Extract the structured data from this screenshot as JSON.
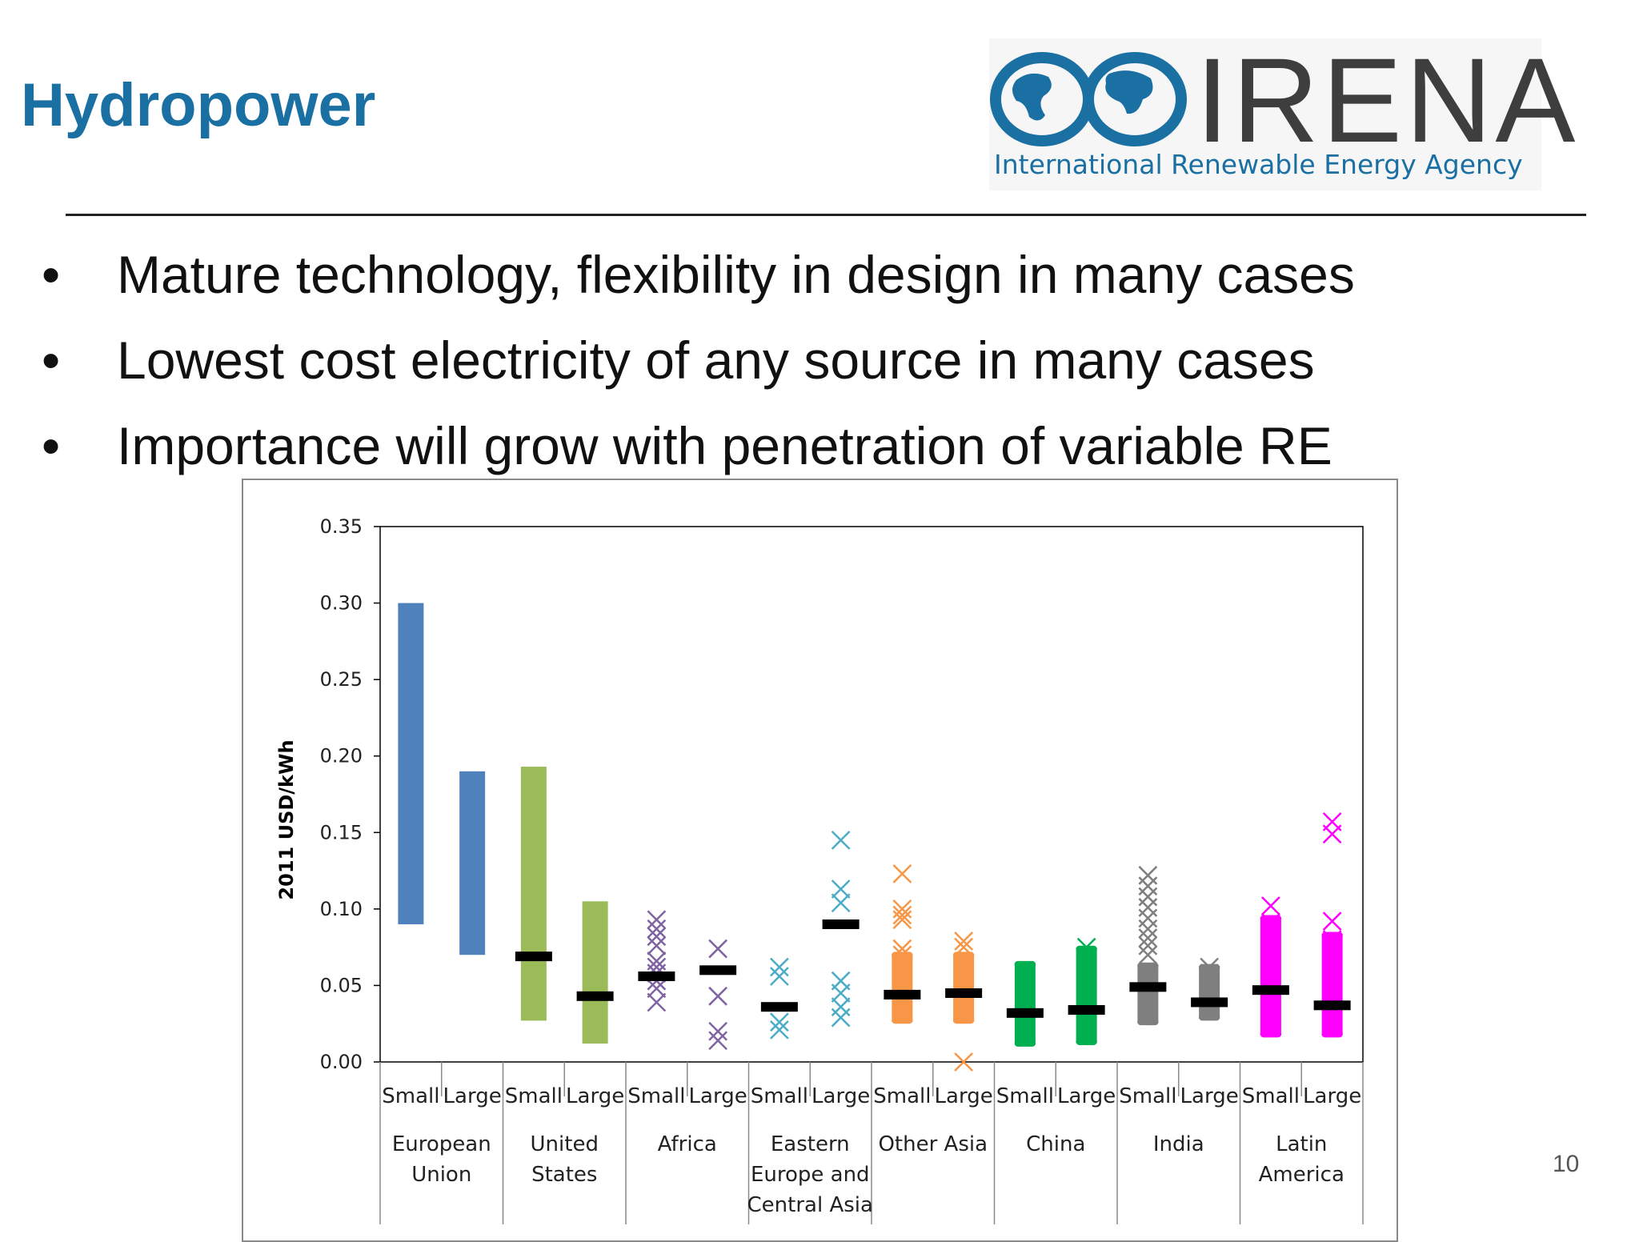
{
  "slide": {
    "title": "Hydropower",
    "bullets": [
      "Mature technology, flexibility in design in many cases",
      "Lowest cost electricity of any source in many cases",
      "Importance will grow with penetration of variable RE"
    ],
    "bullet_glyph": "•",
    "page_number": "10"
  },
  "logo": {
    "name": "IRENA",
    "tagline": "International Renewable Energy Agency",
    "globe_color": "#1a6fa3",
    "text_color": "#3e3e3e"
  },
  "chart_data": {
    "type": "bar",
    "ylabel": "2011 USD/kWh",
    "ylim": [
      0,
      0.35
    ],
    "yticks": [
      "0.00",
      "0.05",
      "0.10",
      "0.15",
      "0.20",
      "0.25",
      "0.30",
      "0.35"
    ],
    "ytick_values": [
      0,
      0.05,
      0.1,
      0.15,
      0.2,
      0.25,
      0.3,
      0.35
    ],
    "regions": [
      {
        "label_lines": [
          "European",
          "Union"
        ],
        "color": "#4f81bd"
      },
      {
        "label_lines": [
          "United",
          "States"
        ],
        "color": "#9bbb59"
      },
      {
        "label_lines": [
          "Africa"
        ],
        "color": "#8064a2"
      },
      {
        "label_lines": [
          "Eastern",
          "Europe and",
          "Central Asia"
        ],
        "color": "#4bacc6"
      },
      {
        "label_lines": [
          "Other Asia"
        ],
        "color": "#f79646"
      },
      {
        "label_lines": [
          "China"
        ],
        "color": "#00b050"
      },
      {
        "label_lines": [
          "India"
        ],
        "color": "#7f7f7f"
      },
      {
        "label_lines": [
          "Latin",
          "America"
        ],
        "color": "#ff00ff"
      }
    ],
    "size_labels": [
      "Small",
      "Large"
    ],
    "mean_marker_color": "#000000",
    "columns": [
      {
        "region": 0,
        "size": "Small",
        "style": "range",
        "range": [
          0.09,
          0.3
        ]
      },
      {
        "region": 0,
        "size": "Large",
        "style": "range",
        "range": [
          0.07,
          0.19
        ]
      },
      {
        "region": 1,
        "size": "Small",
        "style": "range",
        "range": [
          0.027,
          0.193
        ],
        "mean": 0.069
      },
      {
        "region": 1,
        "size": "Large",
        "style": "range",
        "range": [
          0.012,
          0.105
        ],
        "mean": 0.043
      },
      {
        "region": 2,
        "size": "Small",
        "style": "points",
        "mean": 0.056,
        "points": [
          0.093,
          0.087,
          0.082,
          0.076,
          0.066,
          0.062,
          0.058,
          0.053,
          0.048,
          0.039
        ]
      },
      {
        "region": 2,
        "size": "Large",
        "style": "points",
        "mean": 0.06,
        "points": [
          0.074,
          0.043,
          0.02,
          0.014
        ]
      },
      {
        "region": 3,
        "size": "Small",
        "style": "points",
        "mean": 0.036,
        "points": [
          0.062,
          0.056,
          0.026,
          0.021
        ]
      },
      {
        "region": 3,
        "size": "Large",
        "style": "points",
        "mean": 0.09,
        "points": [
          0.145,
          0.113,
          0.104,
          0.053,
          0.045,
          0.036,
          0.029
        ]
      },
      {
        "region": 4,
        "size": "Small",
        "style": "cluster",
        "mean": 0.044,
        "range": [
          0.025,
          0.072
        ],
        "points": [
          0.123,
          0.1,
          0.096,
          0.093,
          0.074,
          0.07
        ]
      },
      {
        "region": 4,
        "size": "Large",
        "style": "cluster",
        "mean": 0.045,
        "range": [
          0.025,
          0.072
        ],
        "points": [
          0.079,
          0.075,
          0.0
        ]
      },
      {
        "region": 5,
        "size": "Small",
        "style": "cluster",
        "mean": 0.032,
        "range": [
          0.01,
          0.066
        ],
        "points": []
      },
      {
        "region": 5,
        "size": "Large",
        "style": "cluster",
        "mean": 0.034,
        "range": [
          0.011,
          0.076
        ],
        "points": [
          0.075,
          0.069
        ]
      },
      {
        "region": 6,
        "size": "Small",
        "style": "cluster",
        "mean": 0.049,
        "range": [
          0.024,
          0.065
        ],
        "points": [
          0.122,
          0.115,
          0.108,
          0.101,
          0.094,
          0.087,
          0.081,
          0.076,
          0.07
        ]
      },
      {
        "region": 6,
        "size": "Large",
        "style": "cluster",
        "mean": 0.039,
        "range": [
          0.027,
          0.064
        ],
        "points": [
          0.062,
          0.058
        ]
      },
      {
        "region": 7,
        "size": "Small",
        "style": "cluster",
        "mean": 0.047,
        "range": [
          0.016,
          0.096
        ],
        "points": [
          0.102,
          0.091,
          0.085
        ]
      },
      {
        "region": 7,
        "size": "Large",
        "style": "cluster",
        "mean": 0.037,
        "range": [
          0.016,
          0.085
        ],
        "points": [
          0.157,
          0.149,
          0.092,
          0.08
        ]
      }
    ]
  }
}
